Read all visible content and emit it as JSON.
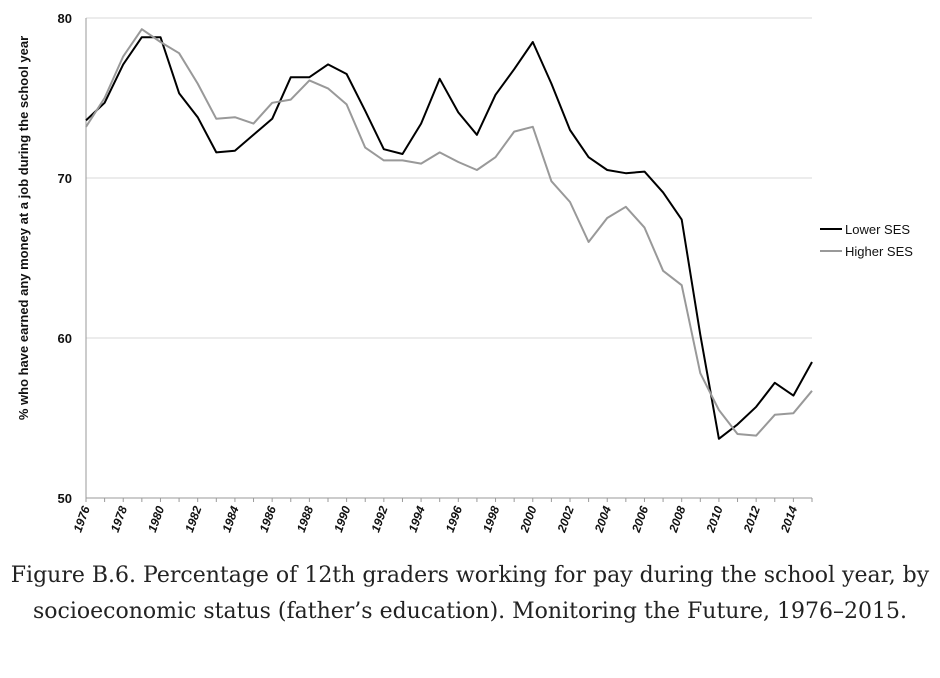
{
  "caption": "Figure B.6. Percentage of 12th graders working for pay during the school year, by socioeconomic status (father’s education). Monitoring the Future, 1976–2015.",
  "chart_data": {
    "type": "line",
    "xlabel": "",
    "ylabel": "% who have earned any money at a job during the school year",
    "ylim": [
      50,
      80
    ],
    "xlim": [
      1976,
      2015
    ],
    "yticks": [
      50,
      60,
      70,
      80
    ],
    "xticks": [
      "1976",
      "1978",
      "1980",
      "1982",
      "1984",
      "1986",
      "1988",
      "1990",
      "1992",
      "1994",
      "1996",
      "1998",
      "2000",
      "2002",
      "2004",
      "2006",
      "2008",
      "2010",
      "2012",
      "2014"
    ],
    "grid": "horizontal",
    "legend_position": "right",
    "x": [
      1976,
      1977,
      1978,
      1979,
      1980,
      1981,
      1982,
      1983,
      1984,
      1985,
      1986,
      1987,
      1988,
      1989,
      1990,
      1991,
      1992,
      1993,
      1994,
      1995,
      1996,
      1997,
      1998,
      1999,
      2000,
      2001,
      2002,
      2003,
      2004,
      2005,
      2006,
      2007,
      2008,
      2009,
      2010,
      2011,
      2012,
      2013,
      2014,
      2015
    ],
    "series": [
      {
        "name": "Lower SES",
        "color": "#000000",
        "values": [
          73.6,
          74.7,
          77.1,
          78.8,
          78.8,
          75.3,
          73.8,
          71.6,
          71.7,
          72.7,
          73.7,
          76.3,
          76.3,
          77.1,
          76.5,
          74.2,
          71.8,
          71.5,
          73.4,
          76.2,
          74.1,
          72.7,
          75.2,
          76.8,
          78.5,
          75.9,
          73.0,
          71.3,
          70.5,
          70.3,
          70.4,
          69.1,
          67.4,
          60.2,
          53.7,
          54.6,
          55.7,
          57.2,
          56.4,
          58.5
        ]
      },
      {
        "name": "Higher SES",
        "color": "#999999",
        "values": [
          73.2,
          75.0,
          77.6,
          79.3,
          78.5,
          77.8,
          75.9,
          73.7,
          73.8,
          73.4,
          74.7,
          74.9,
          76.1,
          75.6,
          74.6,
          71.9,
          71.1,
          71.1,
          70.9,
          71.6,
          71.0,
          70.5,
          71.3,
          72.9,
          73.2,
          69.8,
          68.5,
          66.0,
          67.5,
          68.2,
          66.9,
          64.2,
          63.3,
          57.8,
          55.5,
          54.0,
          53.9,
          55.2,
          55.3,
          56.7
        ]
      }
    ]
  }
}
